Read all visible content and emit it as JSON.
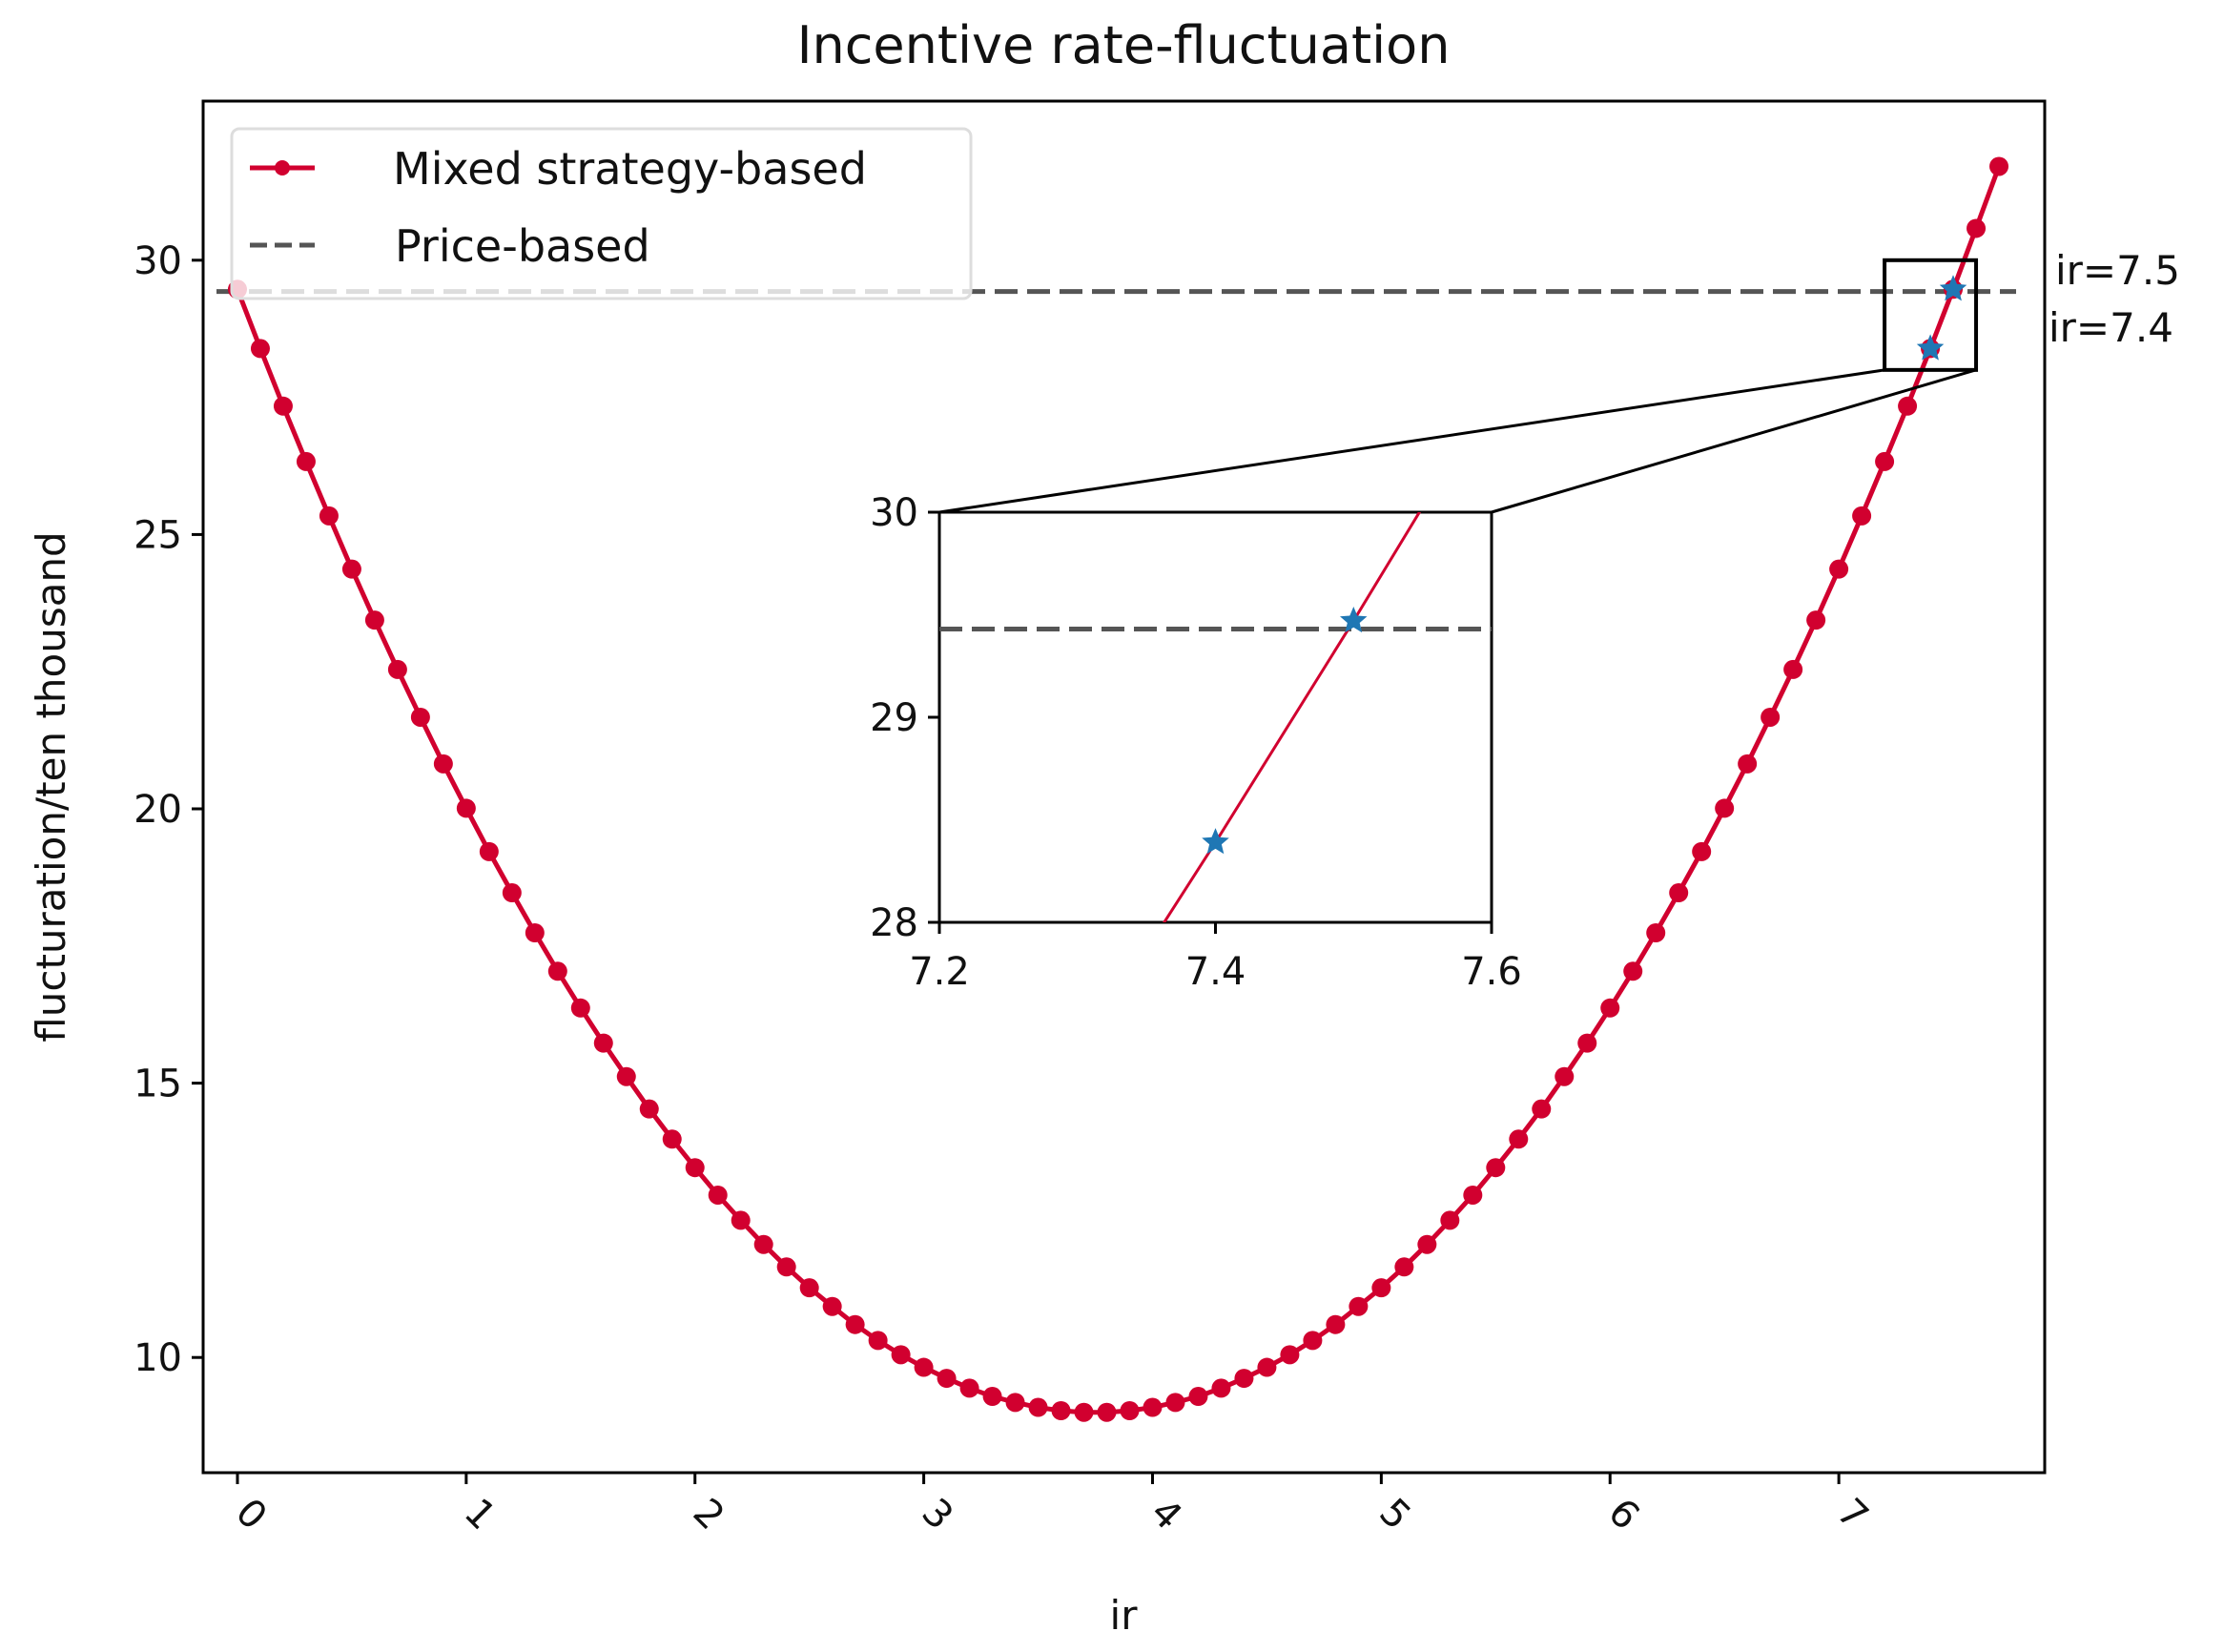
{
  "chart_data": {
    "type": "line",
    "title": "Incentive rate-fluctuation",
    "xlabel": "ir",
    "ylabel": "flucturation/ten thousand",
    "xlim": [
      -0.15,
      7.9
    ],
    "ylim": [
      7.9,
      32.9
    ],
    "xticks": [
      0,
      1,
      2,
      3,
      4,
      5,
      6,
      7
    ],
    "yticks": [
      10,
      15,
      20,
      25,
      30
    ],
    "grid": false,
    "legend_position": "top-left",
    "series": [
      {
        "name": "Mixed strategy-based",
        "color": "#d1002f",
        "style": "solid-with-dot-markers",
        "x": [
          0,
          0.1,
          0.2,
          0.3,
          0.4,
          0.5,
          0.6,
          0.7,
          0.8,
          0.9,
          1.0,
          1.1,
          1.2,
          1.3,
          1.4,
          1.5,
          1.6,
          1.7,
          1.8,
          1.9,
          2.0,
          2.1,
          2.2,
          2.3,
          2.4,
          2.5,
          2.6,
          2.7,
          2.8,
          2.9,
          3.0,
          3.1,
          3.2,
          3.3,
          3.4,
          3.5,
          3.6,
          3.7,
          3.8,
          3.9,
          4.0,
          4.1,
          4.2,
          4.3,
          4.4,
          4.5,
          4.6,
          4.7,
          4.8,
          4.9,
          5.0,
          5.1,
          5.2,
          5.3,
          5.4,
          5.5,
          5.6,
          5.7,
          5.8,
          5.9,
          6.0,
          6.1,
          6.2,
          6.3,
          6.4,
          6.5,
          6.6,
          6.7,
          6.8,
          6.9,
          7.0,
          7.1,
          7.2,
          7.3,
          7.4,
          7.5,
          7.6,
          7.7
        ],
        "y": [
          29.47,
          28.39,
          27.34,
          26.33,
          25.34,
          24.37,
          23.44,
          22.54,
          21.67,
          20.82,
          20.01,
          19.22,
          18.47,
          17.74,
          17.04,
          16.37,
          15.73,
          15.12,
          14.53,
          13.98,
          13.46,
          12.96,
          12.5,
          12.06,
          11.65,
          11.27,
          10.93,
          10.6,
          10.31,
          10.05,
          9.82,
          9.62,
          9.44,
          9.29,
          9.18,
          9.09,
          9.03,
          9.0,
          9.0,
          9.03,
          9.09,
          9.18,
          9.29,
          9.44,
          9.62,
          9.82,
          10.05,
          10.31,
          10.6,
          10.93,
          11.27,
          11.65,
          12.06,
          12.5,
          12.96,
          13.46,
          13.98,
          14.53,
          15.12,
          15.73,
          16.37,
          17.04,
          17.74,
          18.47,
          19.22,
          20.01,
          20.82,
          21.67,
          22.54,
          23.44,
          24.37,
          25.34,
          26.33,
          27.34,
          28.39,
          29.47,
          30.58,
          31.71
        ]
      },
      {
        "name": "Price-based",
        "color": "#555555",
        "style": "dashed",
        "y_constant": 29.43
      }
    ],
    "highlight_points": {
      "color": "#1f77b4",
      "marker": "star",
      "points": [
        {
          "x": 7.4,
          "y": 28.39,
          "label": "ir=7.4"
        },
        {
          "x": 7.5,
          "y": 29.47,
          "label": "ir=7.5"
        }
      ]
    },
    "inset": {
      "xlim": [
        7.2,
        7.6
      ],
      "ylim": [
        28,
        30
      ],
      "xticks": [
        "7.2",
        "7.4",
        "7.6"
      ],
      "yticks": [
        "28",
        "29",
        "30"
      ]
    }
  }
}
